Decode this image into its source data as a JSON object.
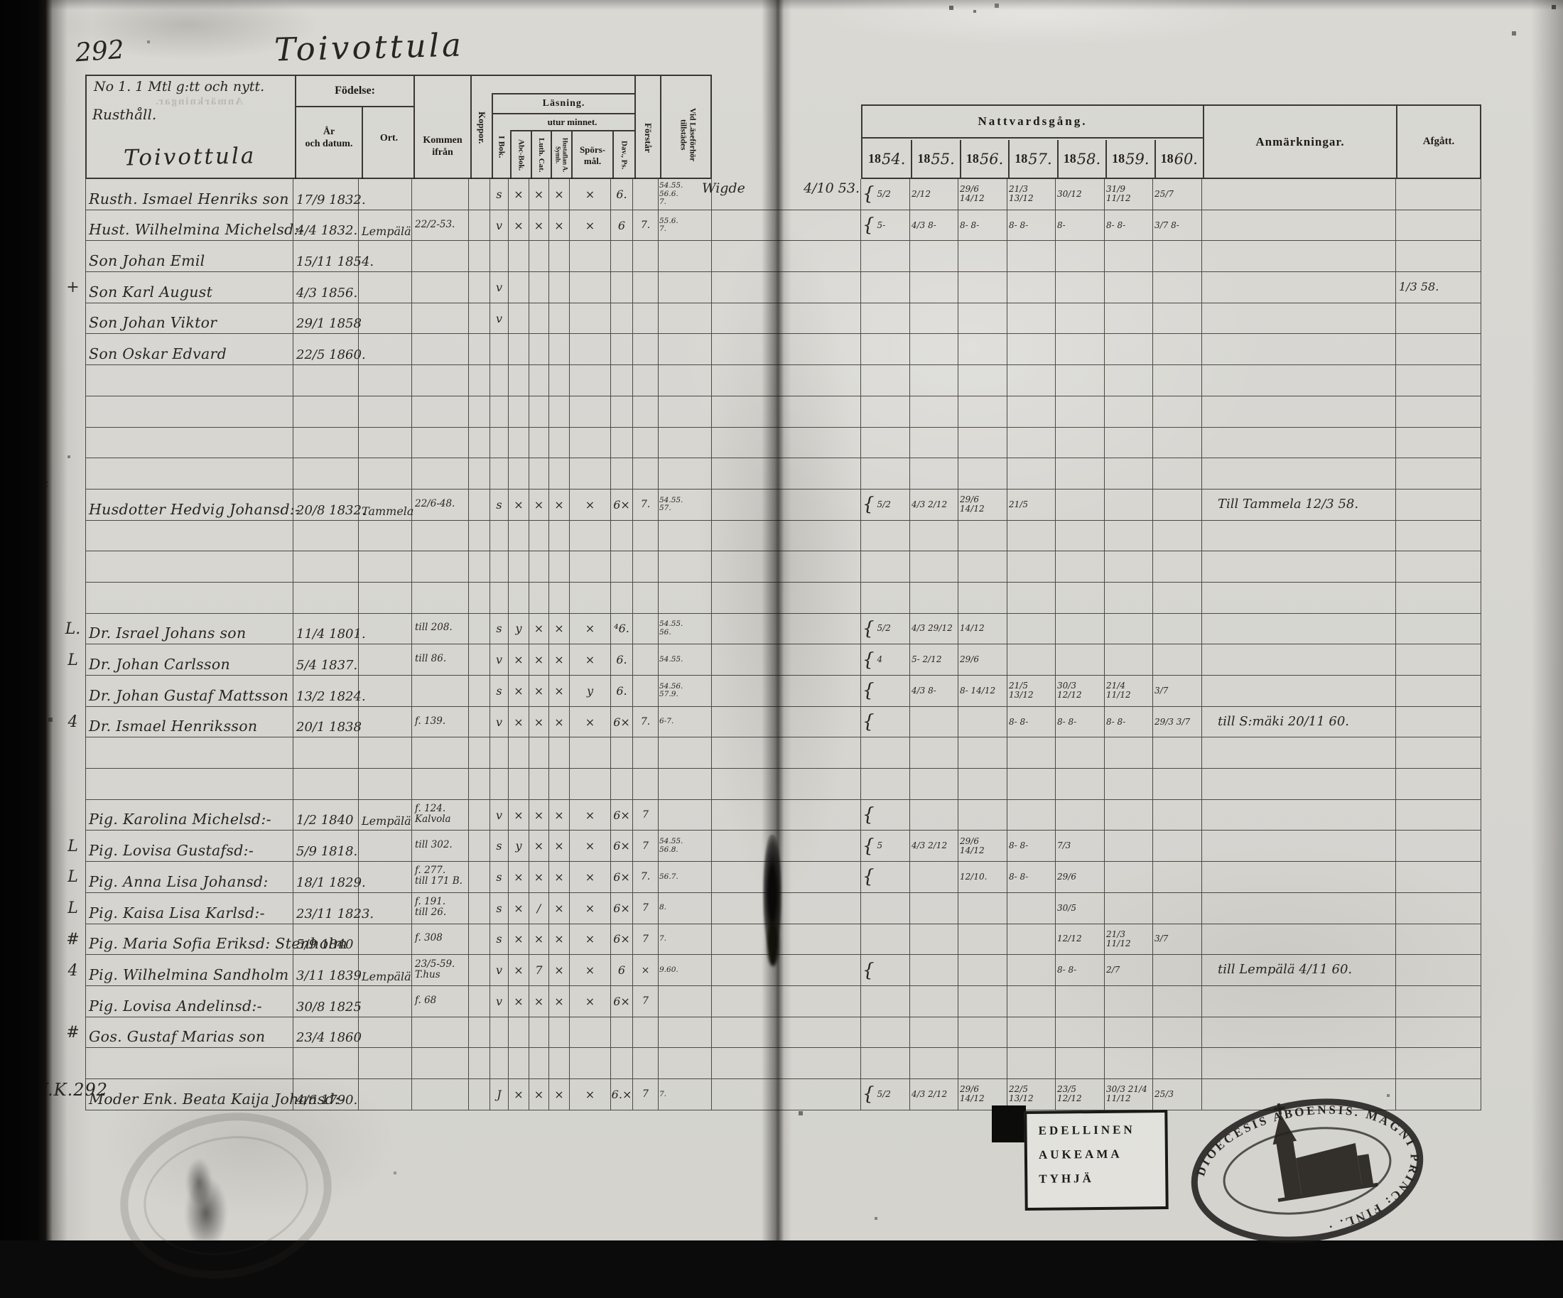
{
  "page": {
    "number": "292",
    "title": "Toivottula"
  },
  "heading_notes": {
    "line1": "No 1. 1 Mtl g:tt och nytt.",
    "line2": "Rusthåll.",
    "village": "Toivottula"
  },
  "header": {
    "fodelse": "Födelse:",
    "ar_och_datum": "År\noch datum.",
    "ort": "Ort.",
    "kommen_ifran": "Kommen ifrån",
    "koppor": "Koppor.",
    "lasning": "Läsning.",
    "utur_minnet": "utur minnet.",
    "i_bok": "I Bok.",
    "abc_bok": "Abc-Bok.",
    "luth_cat": "Luth. Cat.",
    "hustaflan": "Hustaflan A. Symb.",
    "sporsmal": "Spörs-\nmål.",
    "dav_ps": "Dav., Ps.",
    "forstar": "Förstår",
    "vid_laseforhor": "Vid Läseförhör\ntillstädes",
    "nattvardsgang": "Nattvardsgång.",
    "year_prefix": "18",
    "years": [
      "54.",
      "55.",
      "56.",
      "57.",
      "58.",
      "59.",
      "60."
    ],
    "anmarkningar": "Anmärkningar.",
    "afgatt": "Afgått."
  },
  "annotations": {
    "wigde": "Wigde",
    "wigde_date": "4/10 53.",
    "uk": "U.K.292",
    "hedvig_margin": "+4"
  },
  "stamps": {
    "box_lines": [
      "EDELLINEN",
      "AUKEAMA",
      "TYHJÄ"
    ],
    "seal_text": "DIOECESIS ABOENSIS. MAGNI PRINC: FINL. ·"
  },
  "table": {
    "rows": [
      {
        "n": "Rusth. Ismael Henriks son",
        "d": "17/9 1832.",
        "l": [
          "s",
          "×",
          "×",
          "×",
          "×",
          "6."
        ],
        "v": "54.55.\n56.6.\n7.",
        "b": 1,
        "c": [
          "5/2",
          "2/12",
          "29/6 14/12",
          "21/3 13/12",
          "30/12",
          "31/9 11/12",
          "25/7"
        ]
      },
      {
        "n": "Hust. Wilhelmina Michelsd:-",
        "d": "4/4 1832.",
        "o": "Lempälä",
        "k": "22/2-53.",
        "l": [
          "v",
          "×",
          "×",
          "×",
          "×",
          "6"
        ],
        "f": "7.",
        "v": "55.6.\n7.",
        "b": 1,
        "c": [
          "5-",
          "4/3 8-",
          "8- 8-",
          "8- 8-",
          "8-",
          "8- 8-",
          "3/7 8-"
        ]
      },
      {
        "n": "Son Johan Emil",
        "d": "15/11 1854."
      },
      {
        "m": "+",
        "n": "Son Karl August",
        "d": "4/3 1856.",
        "l": [
          "v",
          "",
          "",
          "",
          "",
          ""
        ],
        "x": "1/3 58."
      },
      {
        "n": "Son Johan Viktor",
        "d": "29/1 1858",
        "l": [
          "v",
          "",
          "",
          "",
          "",
          ""
        ]
      },
      {
        "n": "Son Oskar Edvard",
        "d": "22/5 1860."
      },
      {},
      {},
      {},
      {},
      {
        "n": "Husdotter Hedvig Johansd:-",
        "d": "20/8 1832.",
        "o": "Tammela",
        "k": "22/6-48.",
        "l": [
          "s",
          "×",
          "×",
          "×",
          "×",
          "6×"
        ],
        "f": "7.",
        "v": "54.55.\n57.",
        "b": 1,
        "c": [
          "5/2",
          "4/3 2/12",
          "29/6 14/12",
          "21/5",
          "",
          "",
          ""
        ],
        "a": "Till Tammela 12/3 58."
      },
      {},
      {},
      {},
      {
        "m": "L.",
        "n": "Dr. Israel Johans son",
        "d": "11/4 1801.",
        "k": "till 208.",
        "l": [
          "s",
          "y",
          "×",
          "×",
          "×",
          "⁴6."
        ],
        "v": "54.55.\n56.",
        "b": 1,
        "c": [
          "5/2",
          "4/3 29/12",
          "14/12",
          "",
          "",
          "",
          ""
        ]
      },
      {
        "m": "L",
        "n": "Dr. Johan Carlsson",
        "d": "5/4 1837.",
        "k": "till 86.",
        "l": [
          "v",
          "×",
          "×",
          "×",
          "×",
          "6."
        ],
        "v": "54.55.",
        "b": 1,
        "c": [
          "4",
          "5- 2/12",
          "29/6",
          "",
          "",
          "",
          ""
        ]
      },
      {
        "n": "Dr. Johan Gustaf Mattsson",
        "d": "13/2 1824.",
        "l": [
          "s",
          "×",
          "×",
          "×",
          "y",
          "6."
        ],
        "v": "54.56.\n57.9.",
        "b": 1,
        "c": [
          "",
          "4/3 8-",
          "8- 14/12",
          "21/5 13/12",
          "30/3 12/12",
          "21/4 11/12",
          "3/7"
        ]
      },
      {
        "m": "4",
        "n": "Dr. Ismael Henriksson",
        "d": "20/1 1838",
        "k": "f. 139.",
        "l": [
          "v",
          "×",
          "×",
          "×",
          "×",
          "6×"
        ],
        "f": "7.",
        "v": "6-7.",
        "b": 1,
        "c": [
          "",
          "",
          "",
          "8- 8-",
          "8- 8-",
          "8- 8-",
          "29/3 3/7"
        ],
        "a": "till S:mäki 20/11 60."
      },
      {},
      {},
      {
        "n": "Pig. Karolina Michelsd:-",
        "d": "1/2 1840",
        "o": "Lempälä",
        "k": "f. 124.\nKalvola",
        "l": [
          "v",
          "×",
          "×",
          "×",
          "×",
          "6×"
        ],
        "f": "7",
        "b": 1
      },
      {
        "m": "L",
        "n": "Pig. Lovisa Gustafsd:-",
        "d": "5/9 1818.",
        "k": "till 302.",
        "l": [
          "s",
          "y",
          "×",
          "×",
          "×",
          "6×"
        ],
        "f": "7",
        "v": "54.55.\n56.8.",
        "b": 1,
        "c": [
          "5",
          "4/3 2/12",
          "29/6 14/12",
          "8- 8-",
          "7/3",
          "",
          ""
        ]
      },
      {
        "m": "L",
        "n": "Pig. Anna Lisa Johansd:",
        "d": "18/1 1829.",
        "k": "f. 277.\ntill 171 B.",
        "l": [
          "s",
          "×",
          "×",
          "×",
          "×",
          "6×"
        ],
        "f": "7.",
        "v": "56.7.",
        "b": 1,
        "c": [
          "",
          "",
          "12/10.",
          "8- 8-",
          "29/6",
          "",
          ""
        ]
      },
      {
        "m": "L",
        "n": "Pig. Kaisa Lisa Karlsd:-",
        "d": "23/11 1823.",
        "k": "f. 191.\ntill 26.",
        "l": [
          "s",
          "×",
          "∕",
          "×",
          "×",
          "6×"
        ],
        "f": "7",
        "v": "8.",
        "c": [
          "",
          "",
          "",
          "",
          "30/5",
          "",
          ""
        ]
      },
      {
        "m": "#",
        "n": "Pig. Maria Sofia Eriksd: Stenholm",
        "d": "5/9 1840",
        "k": "f. 308",
        "l": [
          "s",
          "×",
          "×",
          "×",
          "×",
          "6×"
        ],
        "f": "7",
        "v": "7.",
        "c": [
          "",
          "",
          "",
          "",
          "12/12",
          "21/3 11/12",
          "3/7"
        ]
      },
      {
        "m": "4",
        "n": "Pig. Wilhelmina Sandholm",
        "d": "3/11 1839",
        "o": "Lempälä",
        "k": "23/5-59.\nT.hus",
        "l": [
          "v",
          "×",
          "7",
          "×",
          "×",
          "6"
        ],
        "f": "×",
        "v": "9.60.",
        "b": 1,
        "c": [
          "",
          "",
          "",
          "",
          "8- 8-",
          "2/7",
          ""
        ],
        "a": "till Lempälä 4/11 60."
      },
      {
        "n": "Pig. Lovisa Andelinsd:-",
        "d": "30/8 1825",
        "k": "f. 68",
        "l": [
          "v",
          "×",
          "×",
          "×",
          "×",
          "6×"
        ],
        "f": "7"
      },
      {
        "m": "#",
        "n": "Gos. Gustaf Marias son",
        "d": "23/4 1860"
      },
      {},
      {
        "n": "Moder Enk. Beata Kaija Johansd:-",
        "d": "4/6 1790.",
        "l": [
          "J",
          "×",
          "×",
          "×",
          "×",
          "6.×"
        ],
        "f": "7",
        "v": "7.",
        "b": 1,
        "c": [
          "5/2",
          "4/3 2/12",
          "29/6 14/12",
          "22/5 13/12",
          "23/5 12/12",
          "30/3 21/4 11/12",
          "25/3"
        ]
      }
    ]
  }
}
